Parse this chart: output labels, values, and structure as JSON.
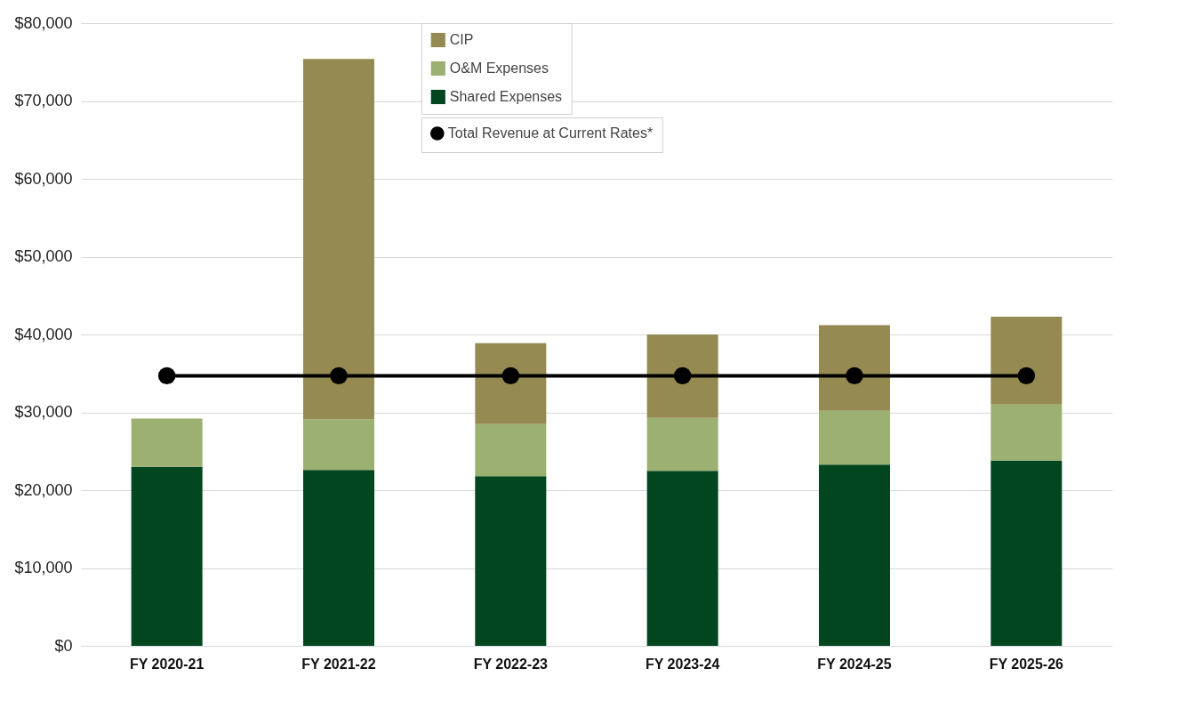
{
  "chart_data": {
    "type": "bar",
    "stacked": true,
    "categories": [
      "FY 2020-21",
      "FY 2021-22",
      "FY 2022-23",
      "FY 2023-24",
      "FY 2024-25",
      "FY 2025-26"
    ],
    "series": [
      {
        "name": "Shared Expenses",
        "color": "#02461f",
        "values": [
          23000,
          22600,
          21800,
          22500,
          23300,
          23800
        ]
      },
      {
        "name": "O&M Expenses",
        "color": "#9bb071",
        "values": [
          6200,
          6500,
          6700,
          6800,
          6900,
          7200
        ]
      },
      {
        "name": "CIP",
        "color": "#968a53",
        "values": [
          0,
          46300,
          10400,
          10700,
          11000,
          11300
        ]
      },
      {
        "name": "Total Revenue at Current Rates*",
        "type": "line",
        "color": "#000000",
        "values": [
          34700,
          34700,
          34700,
          34700,
          34700,
          34700
        ]
      }
    ],
    "ylim": [
      0,
      80000
    ],
    "yticks": [
      {
        "value": 0,
        "label": "$0"
      },
      {
        "value": 10000,
        "label": "$10,000"
      },
      {
        "value": 20000,
        "label": "$20,000"
      },
      {
        "value": 30000,
        "label": "$30,000"
      },
      {
        "value": 40000,
        "label": "$40,000"
      },
      {
        "value": 50000,
        "label": "$50,000"
      },
      {
        "value": 60000,
        "label": "$60,000"
      },
      {
        "value": 70000,
        "label": "$70,000"
      },
      {
        "value": 80000,
        "label": "$80,000"
      }
    ],
    "grid": "y",
    "legend": "top",
    "marker": "circle"
  }
}
